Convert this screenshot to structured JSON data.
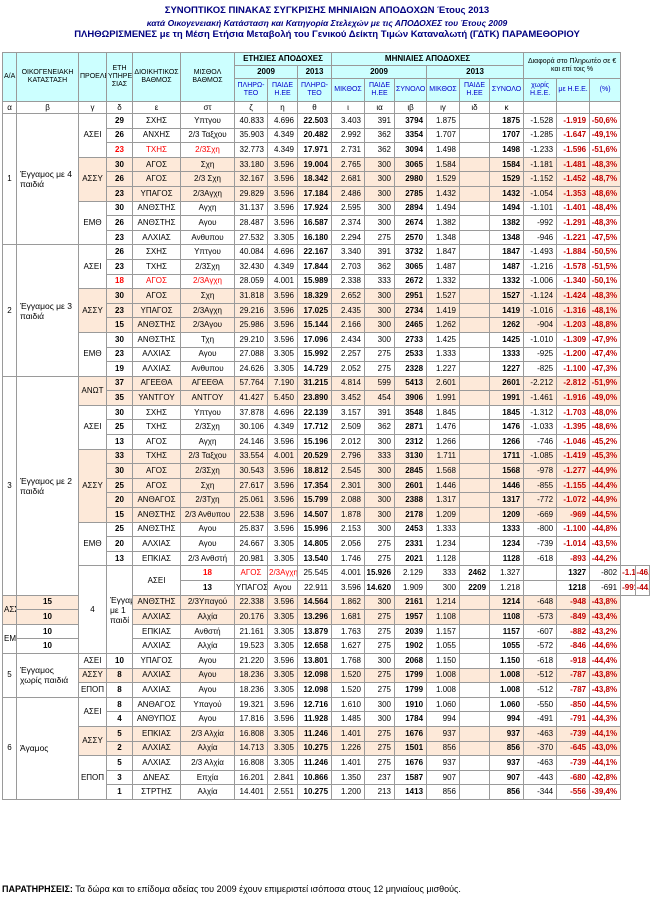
{
  "titles": {
    "line1": "ΣΥΝΟΠΤΙΚΟΣ ΠΙΝΑΚΑΣ ΣΥΓΚΡΙΣΗΣ ΜΗΝΙΑΙΩΝ ΑΠΟΔΟΧΩΝ Έτους 2013",
    "line2": "κατά Οικογενειακή Κατάσταση και Κατηγορία Στελεχών με τις ΑΠΟΔΟΧΕΣ του Έτους 2009",
    "line3": "ΠΛΗΘΩΡΙΣΜΕΝΕΣ με τη Μέση Ετήσια Μεταβολή του Γενικού Δείκτη Τιμών Καταναλωτή (ΓΔΤΚ) ΠΑΡΑΜΕΘΟΡΙΟΥ"
  },
  "headers": {
    "aa": "Α/Α",
    "family": "ΟΙΚΟΓΕΝΕΙΑΚΗ ΚΑΤΑΣΤΑΣΗ",
    "source": "ΠΡΟΕΛΕΥΣΗ",
    "years": "ΕΤΗ ΥΠΗΡΕ ΣΙΑΣ",
    "admin": "ΔΙΟΙΚΗΤΙΚΟΣ ΒΑΘΜΟΣ",
    "salary": "ΜΙΣΘΟΛ ΒΑΘΜΟΣ",
    "annual": "ΕΤΗΣΙΕΣ ΑΠΟΔΟΧΕΣ",
    "monthly": "ΜΗΝΙΑΙΕΣ ΑΠΟΔΟΧΕΣ",
    "diff": "Διαφορά στο Πληρωτέο σε € και επί τοις %",
    "y2009": "2009",
    "y2013": "2013",
    "pay": "ΠΛΗΡΩ- ΤΕΟ",
    "nee": "ΠΛΗΡΩ- ΤΕΟ",
    "paid": "ΠΑΙΔΕ Η.ΕΕ",
    "meth": "ΜΙΚΘΟΣ",
    "sum": "ΣΥΝΟΛΟ",
    "wo": "χωρίς Η.Ε.Ε.",
    "with": "με Η.Ε.Ε.",
    "pct": "(%)",
    "letters": [
      "α",
      "β",
      "γ",
      "δ",
      "ε",
      "στ",
      "ζ",
      "η",
      "θ",
      "ι",
      "ια",
      "ιβ",
      "ιγ",
      "ιδ",
      "κ",
      "",
      "",
      ""
    ]
  },
  "groups": [
    {
      "aa": "1",
      "label": "Έγγαμος με 4 παιδιά",
      "rows": 9
    },
    {
      "aa": "2",
      "label": "Έγγαμος με 3 παιδιά",
      "rows": 9
    },
    {
      "aa": "3",
      "label": "Έγγαμος με 2 παιδιά",
      "rows": 15
    },
    {
      "aa": "4",
      "label": "Έγγαμος με 1 παιδί",
      "rows": 6
    },
    {
      "aa": "5",
      "label": "Έγγαμος χωρίς παιδιά",
      "rows": 3
    },
    {
      "aa": "6",
      "label": "Άγαμος",
      "rows": 9
    }
  ],
  "rows": [
    {
      "g": 0,
      "src": "ΑΣΕΙ",
      "ys": "29",
      "rank": "ΣΧΗΣ",
      "mr": "Υπτγου",
      "c": [
        "40.833",
        "4.696",
        "22.503",
        "3.403",
        "391",
        "3794",
        "1.875",
        "",
        "1875",
        "-1.528",
        "-1.919",
        "-50,6%"
      ],
      "pink": false,
      "red": false
    },
    {
      "g": 0,
      "src": "",
      "ys": "26",
      "rank": "ΑΝΧΗΣ",
      "mr": "2/3 Ταξχου",
      "c": [
        "35.903",
        "4.349",
        "20.482",
        "2.992",
        "362",
        "3354",
        "1.707",
        "",
        "1707",
        "-1.285",
        "-1.647",
        "-49,1%"
      ],
      "pink": false,
      "red": false
    },
    {
      "g": 0,
      "src": "",
      "ys": "23",
      "rank": "ΤΧΗΣ",
      "mr": "2/3Σχη",
      "c": [
        "32.773",
        "4.349",
        "17.971",
        "2.731",
        "362",
        "3094",
        "1.498",
        "",
        "1498",
        "-1.233",
        "-1.596",
        "-51,6%"
      ],
      "pink": false,
      "red": true
    },
    {
      "g": 0,
      "src": "ΑΣΣΥ",
      "ys": "30",
      "rank": "ΑΓΟΣ",
      "mr": "Σχη",
      "c": [
        "33.180",
        "3.596",
        "19.004",
        "2.765",
        "300",
        "3065",
        "1.584",
        "",
        "1584",
        "-1.181",
        "-1.481",
        "-48,3%"
      ],
      "pink": true,
      "red": false
    },
    {
      "g": 0,
      "src": "",
      "ys": "26",
      "rank": "ΑΓΟΣ",
      "mr": "2/3 Σχη",
      "c": [
        "32.167",
        "3.596",
        "18.342",
        "2.681",
        "300",
        "2980",
        "1.529",
        "",
        "1529",
        "-1.152",
        "-1.452",
        "-48,7%"
      ],
      "pink": true,
      "red": false
    },
    {
      "g": 0,
      "src": "",
      "ys": "23",
      "rank": "ΥΠΑΓΟΣ",
      "mr": "2/3Αγχη",
      "c": [
        "29.829",
        "3.596",
        "17.184",
        "2.486",
        "300",
        "2785",
        "1.432",
        "",
        "1432",
        "-1.054",
        "-1.353",
        "-48,6%"
      ],
      "pink": true,
      "red": false
    },
    {
      "g": 0,
      "src": "ΕΜΘ",
      "ys": "30",
      "rank": "ΑΝΘΣΤΗΣ",
      "mr": "Αγχη",
      "c": [
        "31.137",
        "3.596",
        "17.924",
        "2.595",
        "300",
        "2894",
        "1.494",
        "",
        "1494",
        "-1.101",
        "-1.401",
        "-48,4%"
      ],
      "pink": false,
      "red": false
    },
    {
      "g": 0,
      "src": "",
      "ys": "26",
      "rank": "ΑΝΘΣΤΗΣ",
      "mr": "Αγου",
      "c": [
        "28.487",
        "3.596",
        "16.587",
        "2.374",
        "300",
        "2674",
        "1.382",
        "",
        "1382",
        "-992",
        "-1.291",
        "-48,3%"
      ],
      "pink": false,
      "red": false
    },
    {
      "g": 0,
      "src": "",
      "ys": "23",
      "rank": "ΑΛΧΙΑΣ",
      "mr": "Ανθυπου",
      "c": [
        "27.532",
        "3.305",
        "16.180",
        "2.294",
        "275",
        "2570",
        "1.348",
        "",
        "1348",
        "-946",
        "-1.221",
        "-47,5%"
      ],
      "pink": false,
      "red": false
    },
    {
      "g": 1,
      "src": "ΑΣΕΙ",
      "ys": "26",
      "rank": "ΣΧΗΣ",
      "mr": "Υπτγου",
      "c": [
        "40.084",
        "4.696",
        "22.167",
        "3.340",
        "391",
        "3732",
        "1.847",
        "",
        "1847",
        "-1.493",
        "-1.884",
        "-50,5%"
      ],
      "pink": false,
      "red": false
    },
    {
      "g": 1,
      "src": "",
      "ys": "23",
      "rank": "ΤΧΗΣ",
      "mr": "2/3Σχη",
      "c": [
        "32.430",
        "4.349",
        "17.844",
        "2.703",
        "362",
        "3065",
        "1.487",
        "",
        "1487",
        "-1.216",
        "-1.578",
        "-51,5%"
      ],
      "pink": false,
      "red": false
    },
    {
      "g": 1,
      "src": "",
      "ys": "18",
      "rank": "ΑΓΟΣ",
      "mr": "2/3Αγχη",
      "c": [
        "28.059",
        "4.001",
        "15.989",
        "2.338",
        "333",
        "2672",
        "1.332",
        "",
        "1332",
        "-1.006",
        "-1.340",
        "-50,1%"
      ],
      "pink": false,
      "red": true
    },
    {
      "g": 1,
      "src": "ΑΣΣΥ",
      "ys": "30",
      "rank": "ΑΓΟΣ",
      "mr": "Σχη",
      "c": [
        "31.818",
        "3.596",
        "18.329",
        "2.652",
        "300",
        "2951",
        "1.527",
        "",
        "1527",
        "-1.124",
        "-1.424",
        "-48,3%"
      ],
      "pink": true,
      "red": false
    },
    {
      "g": 1,
      "src": "",
      "ys": "23",
      "rank": "ΥΠΑΓΟΣ",
      "mr": "2/3Αγχη",
      "c": [
        "29.216",
        "3.596",
        "17.025",
        "2.435",
        "300",
        "2734",
        "1.419",
        "",
        "1419",
        "-1.016",
        "-1.316",
        "-48,1%"
      ],
      "pink": true,
      "red": false
    },
    {
      "g": 1,
      "src": "",
      "ys": "15",
      "rank": "ΑΝΘΣΤΗΣ",
      "mr": "2/3Αγου",
      "c": [
        "25.986",
        "3.596",
        "15.144",
        "2.166",
        "300",
        "2465",
        "1.262",
        "",
        "1262",
        "-904",
        "-1.203",
        "-48,8%"
      ],
      "pink": true,
      "red": false
    },
    {
      "g": 1,
      "src": "ΕΜΘ",
      "ys": "30",
      "rank": "ΑΝΘΣΤΗΣ",
      "mr": "Τχη",
      "c": [
        "29.210",
        "3.596",
        "17.096",
        "2.434",
        "300",
        "2733",
        "1.425",
        "",
        "1425",
        "-1.010",
        "-1.309",
        "-47,9%"
      ],
      "pink": false,
      "red": false
    },
    {
      "g": 1,
      "src": "",
      "ys": "23",
      "rank": "ΑΛΧΙΑΣ",
      "mr": "Αγου",
      "c": [
        "27.088",
        "3.305",
        "15.992",
        "2.257",
        "275",
        "2533",
        "1.333",
        "",
        "1333",
        "-925",
        "-1.200",
        "-47,4%"
      ],
      "pink": false,
      "red": false
    },
    {
      "g": 1,
      "src": "",
      "ys": "19",
      "rank": "ΑΛΧΙΑΣ",
      "mr": "Ανθυπου",
      "c": [
        "24.626",
        "3.305",
        "14.729",
        "2.052",
        "275",
        "2328",
        "1.227",
        "",
        "1227",
        "-825",
        "-1.100",
        "-47,3%"
      ],
      "pink": false,
      "red": false
    },
    {
      "g": 2,
      "src": "ΑΝΩΤ",
      "ys": "37",
      "rank": "ΑΓΕΕΘΑ",
      "mr": "ΑΓΕΕΘΑ",
      "c": [
        "57.764",
        "7.190",
        "31.215",
        "4.814",
        "599",
        "5413",
        "2.601",
        "",
        "2601",
        "-2.212",
        "-2.812",
        "-51,9%"
      ],
      "pink": true,
      "red": false
    },
    {
      "g": 2,
      "src": "",
      "ys": "35",
      "rank": "ΥΑΝΤΓΟΥ",
      "mr": "ΑΝΤΓΟΥ",
      "c": [
        "41.427",
        "5.450",
        "23.890",
        "3.452",
        "454",
        "3906",
        "1.991",
        "",
        "1991",
        "-1.461",
        "-1.916",
        "-49,0%"
      ],
      "pink": true,
      "red": false
    },
    {
      "g": 2,
      "src": "ΑΣΕΙ",
      "ys": "30",
      "rank": "ΣΧΗΣ",
      "mr": "Υπτγου",
      "c": [
        "37.878",
        "4.696",
        "22.139",
        "3.157",
        "391",
        "3548",
        "1.845",
        "",
        "1845",
        "-1.312",
        "-1.703",
        "-48,0%"
      ],
      "pink": false,
      "red": false
    },
    {
      "g": 2,
      "src": "",
      "ys": "25",
      "rank": "ΤΧΗΣ",
      "mr": "2/3Σχη",
      "c": [
        "30.106",
        "4.349",
        "17.712",
        "2.509",
        "362",
        "2871",
        "1.476",
        "",
        "1476",
        "-1.033",
        "-1.395",
        "-48,6%"
      ],
      "pink": false,
      "red": false
    },
    {
      "g": 2,
      "src": "",
      "ys": "13",
      "rank": "ΑΓΟΣ",
      "mr": "Αγχη",
      "c": [
        "24.146",
        "3.596",
        "15.196",
        "2.012",
        "300",
        "2312",
        "1.266",
        "",
        "1266",
        "-746",
        "-1.046",
        "-45,2%"
      ],
      "pink": false,
      "red": false
    },
    {
      "g": 2,
      "src": "ΑΣΣΥ",
      "ys": "33",
      "rank": "ΤΧΗΣ",
      "mr": "2/3 Ταξχου",
      "c": [
        "33.554",
        "4.001",
        "20.529",
        "2.796",
        "333",
        "3130",
        "1.711",
        "",
        "1711",
        "-1.085",
        "-1.419",
        "-45,3%"
      ],
      "pink": true,
      "red": false
    },
    {
      "g": 2,
      "src": "",
      "ys": "30",
      "rank": "ΑΓΟΣ",
      "mr": "2/3Σχη",
      "c": [
        "30.543",
        "3.596",
        "18.812",
        "2.545",
        "300",
        "2845",
        "1.568",
        "",
        "1568",
        "-978",
        "-1.277",
        "-44,9%"
      ],
      "pink": true,
      "red": false
    },
    {
      "g": 2,
      "src": "",
      "ys": "25",
      "rank": "ΑΓΟΣ",
      "mr": "Σχη",
      "c": [
        "27.617",
        "3.596",
        "17.354",
        "2.301",
        "300",
        "2601",
        "1.446",
        "",
        "1446",
        "-855",
        "-1.155",
        "-44,4%"
      ],
      "pink": true,
      "red": false
    },
    {
      "g": 2,
      "src": "",
      "ys": "20",
      "rank": "ΑΝΘΑΓΟΣ",
      "mr": "2/3Τχη",
      "c": [
        "25.061",
        "3.596",
        "15.799",
        "2.088",
        "300",
        "2388",
        "1.317",
        "",
        "1317",
        "-772",
        "-1.072",
        "-44,9%"
      ],
      "pink": true,
      "red": false
    },
    {
      "g": 2,
      "src": "",
      "ys": "15",
      "rank": "ΑΝΘΣΤΗΣ",
      "mr": "2/3 Ανθυπου",
      "c": [
        "22.538",
        "3.596",
        "14.507",
        "1.878",
        "300",
        "2178",
        "1.209",
        "",
        "1209",
        "-669",
        "-969",
        "-44,5%"
      ],
      "pink": true,
      "red": false
    },
    {
      "g": 2,
      "src": "ΕΜΘ",
      "ys": "25",
      "rank": "ΑΝΘΣΤΗΣ",
      "mr": "Αγου",
      "c": [
        "25.837",
        "3.596",
        "15.996",
        "2.153",
        "300",
        "2453",
        "1.333",
        "",
        "1333",
        "-800",
        "-1.100",
        "-44,8%"
      ],
      "pink": false,
      "red": false
    },
    {
      "g": 2,
      "src": "",
      "ys": "20",
      "rank": "ΑΛΧΙΑΣ",
      "mr": "Αγου",
      "c": [
        "24.667",
        "3.305",
        "14.805",
        "2.056",
        "275",
        "2331",
        "1.234",
        "",
        "1234",
        "-739",
        "-1.014",
        "-43,5%"
      ],
      "pink": false,
      "red": false
    },
    {
      "g": 2,
      "src": "",
      "ys": "13",
      "rank": "ΕΠΚΙΑΣ",
      "mr": "2/3 Ανθστή",
      "c": [
        "20.981",
        "3.305",
        "13.540",
        "1.746",
        "275",
        "2021",
        "1.128",
        "",
        "1128",
        "-618",
        "-893",
        "-44,2%"
      ],
      "pink": false,
      "red": false
    },
    {
      "g": 3,
      "src": "ΑΣΕΙ",
      "ys": "18",
      "rank": "ΑΓΟΣ",
      "mr": "2/3Αγχη",
      "c": [
        "25.545",
        "4.001",
        "15.926",
        "2.129",
        "333",
        "2462",
        "1.327",
        "",
        "1327",
        "-802",
        "-1.135",
        "-46,1%"
      ],
      "pink": false,
      "red": true
    },
    {
      "g": 3,
      "src": "",
      "ys": "13",
      "rank": "ΥΠΑΓΟΣ",
      "mr": "Αγου",
      "c": [
        "22.911",
        "3.596",
        "14.620",
        "1.909",
        "300",
        "2209",
        "1.218",
        "",
        "1218",
        "-691",
        "-991",
        "-44,8%"
      ],
      "pink": false,
      "red": false
    },
    {
      "g": 3,
      "src": "ΑΣΣΥ",
      "ys": "15",
      "rank": "ΑΝΘΣΤΗΣ",
      "mr": "2/3Υπαγού",
      "c": [
        "22.338",
        "3.596",
        "14.564",
        "1.862",
        "300",
        "2161",
        "1.214",
        "",
        "1214",
        "-648",
        "-948",
        "-43,8%"
      ],
      "pink": true,
      "red": false
    },
    {
      "g": 3,
      "src": "",
      "ys": "10",
      "rank": "ΑΛΧΙΑΣ",
      "mr": "Αλχία",
      "c": [
        "20.176",
        "3.305",
        "13.296",
        "1.681",
        "275",
        "1957",
        "1.108",
        "",
        "1108",
        "-573",
        "-849",
        "-43,4%"
      ],
      "pink": true,
      "red": false
    },
    {
      "g": 3,
      "src": "ΕΜΘ",
      "ys": "10",
      "rank": "ΕΠΚΙΑΣ",
      "mr": "Ανθστή",
      "c": [
        "21.161",
        "3.305",
        "13.879",
        "1.763",
        "275",
        "2039",
        "1.157",
        "",
        "1157",
        "-607",
        "-882",
        "-43,2%"
      ],
      "pink": false,
      "red": false
    },
    {
      "g": 3,
      "src": "",
      "ys": "10",
      "rank": "ΑΛΧΙΑΣ",
      "mr": "Αλχία",
      "c": [
        "19.523",
        "3.305",
        "12.658",
        "1.627",
        "275",
        "1902",
        "1.055",
        "",
        "1055",
        "-572",
        "-846",
        "-44,6%"
      ],
      "pink": false,
      "red": false
    },
    {
      "g": 4,
      "src": "ΑΣΕΙ",
      "ys": "10",
      "rank": "ΥΠΑΓΟΣ",
      "mr": "Αγου",
      "c": [
        "21.220",
        "3.596",
        "13.801",
        "1.768",
        "300",
        "2068",
        "1.150",
        "",
        "1.150",
        "-618",
        "-918",
        "-44,4%"
      ],
      "pink": false,
      "red": false
    },
    {
      "g": 4,
      "src": "ΑΣΣΥ",
      "ys": "8",
      "rank": "ΑΛΧΙΑΣ",
      "mr": "Αγου",
      "c": [
        "18.236",
        "3.305",
        "12.098",
        "1.520",
        "275",
        "1799",
        "1.008",
        "",
        "1.008",
        "-512",
        "-787",
        "-43,8%"
      ],
      "pink": true,
      "red": false
    },
    {
      "g": 4,
      "src": "ΕΠΟΠ",
      "ys": "8",
      "rank": "ΑΛΧΙΑΣ",
      "mr": "Αγου",
      "c": [
        "18.236",
        "3.305",
        "12.098",
        "1.520",
        "275",
        "1799",
        "1.008",
        "",
        "1.008",
        "-512",
        "-787",
        "-43,8%"
      ],
      "pink": false,
      "red": false
    },
    {
      "g": 5,
      "src": "ΑΣΕΙ",
      "ys": "8",
      "rank": "ΑΝΘΑΓΟΣ",
      "mr": "Υπαγού",
      "c": [
        "19.321",
        "3.596",
        "12.716",
        "1.610",
        "300",
        "1910",
        "1.060",
        "",
        "1.060",
        "-550",
        "-850",
        "-44,5%"
      ],
      "pink": false,
      "red": false
    },
    {
      "g": 5,
      "src": "",
      "ys": "4",
      "rank": "ΑΝΘΥΠΟΣ",
      "mr": "Αγου",
      "c": [
        "17.816",
        "3.596",
        "11.928",
        "1.485",
        "300",
        "1784",
        "994",
        "",
        "994",
        "-491",
        "-791",
        "-44,3%"
      ],
      "pink": false,
      "red": false
    },
    {
      "g": 5,
      "src": "ΑΣΣΥ",
      "ys": "5",
      "rank": "ΕΠΚΙΑΣ",
      "mr": "2/3 Αλχία",
      "c": [
        "16.808",
        "3.305",
        "11.246",
        "1.401",
        "275",
        "1676",
        "937",
        "",
        "937",
        "-463",
        "-739",
        "-44,1%"
      ],
      "pink": true,
      "red": false
    },
    {
      "g": 5,
      "src": "",
      "ys": "2",
      "rank": "ΑΛΧΙΑΣ",
      "mr": "Αλχία",
      "c": [
        "14.713",
        "3.305",
        "10.275",
        "1.226",
        "275",
        "1501",
        "856",
        "",
        "856",
        "-370",
        "-645",
        "-43,0%"
      ],
      "pink": true,
      "red": false
    },
    {
      "g": 5,
      "src": "ΕΠΟΠ",
      "ys": "5",
      "rank": "ΑΛΧΙΑΣ",
      "mr": "2/3 Αλχία",
      "c": [
        "16.808",
        "3.305",
        "11.246",
        "1.401",
        "275",
        "1676",
        "937",
        "",
        "937",
        "-463",
        "-739",
        "-44,1%"
      ],
      "pink": false,
      "red": false
    },
    {
      "g": 5,
      "src": "",
      "ys": "3",
      "rank": "ΔΝΕΑΣ",
      "mr": "Επχία",
      "c": [
        "16.201",
        "2.841",
        "10.866",
        "1.350",
        "237",
        "1587",
        "907",
        "",
        "907",
        "-443",
        "-680",
        "-42,8%"
      ],
      "pink": false,
      "red": false
    },
    {
      "g": 5,
      "src": "",
      "ys": "1",
      "rank": "ΣΤΡΤΗΣ",
      "mr": "Αλχία",
      "c": [
        "14.401",
        "2.551",
        "10.275",
        "1.200",
        "213",
        "1413",
        "856",
        "",
        "856",
        "-344",
        "-556",
        "-39,4%"
      ],
      "pink": false,
      "red": false
    }
  ],
  "note": {
    "label": "ΠΑΡΑΤΗΡΗΣΕΙΣ:",
    "text": "Τα δώρα και το επίδομα αδείας του 2009 έχουν επιμεριστεί ισόποσα στους 12 μηνιαίους μισθούς."
  }
}
